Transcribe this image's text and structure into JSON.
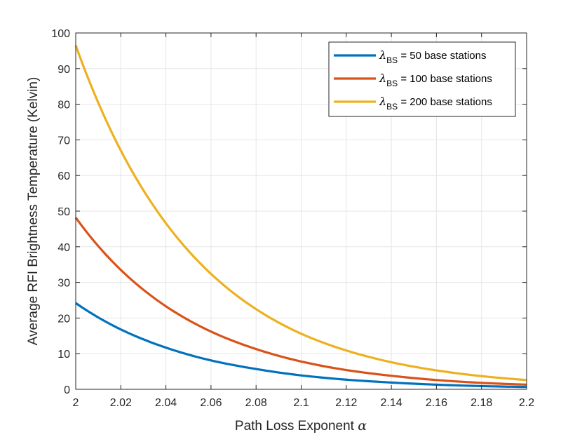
{
  "chart_data": {
    "type": "line",
    "title": "",
    "xlabel": "Path Loss Exponent",
    "xlabel_symbol": "α",
    "ylabel": "Average RFI Brightness Temperature (Kelvin)",
    "xlim": [
      2,
      2.2
    ],
    "ylim": [
      0,
      100
    ],
    "x_ticks": [
      "2",
      "2.02",
      "2.04",
      "2.06",
      "2.08",
      "2.1",
      "2.12",
      "2.14",
      "2.16",
      "2.18",
      "2.2"
    ],
    "y_ticks": [
      "0",
      "10",
      "20",
      "30",
      "40",
      "50",
      "60",
      "70",
      "80",
      "90",
      "100"
    ],
    "grid": true,
    "legend_position": "top-right",
    "x": [
      2.0,
      2.02,
      2.04,
      2.06,
      2.08,
      2.1,
      2.12,
      2.14,
      2.16,
      2.18,
      2.2
    ],
    "series": [
      {
        "name_symbol": "λ",
        "name_sub": "BS",
        "name_rest": " = 50 base stations",
        "color": "#0072BD",
        "values": [
          24.2,
          16.8,
          11.7,
          8.1,
          5.7,
          3.9,
          2.7,
          1.9,
          1.3,
          0.9,
          0.65
        ]
      },
      {
        "name_symbol": "λ",
        "name_sub": "BS",
        "name_rest": " = 100 base stations",
        "color": "#D95319",
        "values": [
          48.2,
          33.5,
          23.3,
          16.2,
          11.3,
          7.8,
          5.4,
          3.8,
          2.6,
          1.8,
          1.3
        ]
      },
      {
        "name_symbol": "λ",
        "name_sub": "BS",
        "name_rest": " = 200 base stations",
        "color": "#EDB120",
        "values": [
          96.5,
          67.0,
          46.6,
          32.4,
          22.5,
          15.6,
          10.9,
          7.6,
          5.3,
          3.7,
          2.6
        ]
      }
    ]
  }
}
